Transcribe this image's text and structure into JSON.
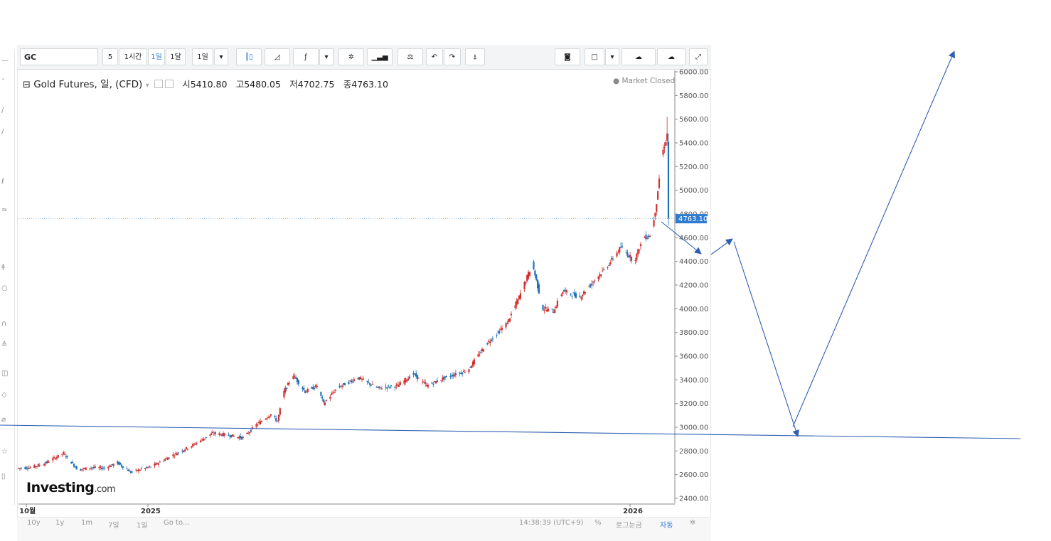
{
  "toolbar": {
    "symbol": "GC",
    "intervals": [
      "5",
      "1시간",
      "1일",
      "1달",
      "1일"
    ],
    "active_interval": "1일"
  },
  "legend": {
    "title": "Gold Futures, 일, (CFD)",
    "open_label": "시",
    "open": "5410.80",
    "high_label": "고",
    "high": "5480.05",
    "low_label": "저",
    "low": "4702.75",
    "close_label": "종",
    "close": "4763.10",
    "status": "● Market Closed"
  },
  "watermark": {
    "brand": "Investing",
    "suffix": ".com"
  },
  "bottom": {
    "ranges": [
      "10y",
      "1y",
      "1m",
      "7일",
      "1일",
      "Go to..."
    ],
    "time": "14:38:39 (UTC+9)",
    "percent": "%",
    "log": "로그눈금",
    "auto": "자동"
  },
  "chart_data": {
    "type": "candlestick",
    "title": "Gold Futures, 일, (CFD)",
    "yaxis": {
      "ticks": [
        2400,
        2600,
        2800,
        3000,
        3200,
        3400,
        3600,
        3800,
        4000,
        4200,
        4400,
        4600,
        4800,
        5000,
        5200,
        5400,
        5600,
        5800,
        6000
      ],
      "tick_labels": [
        "2400.00",
        "2600.00",
        "2800.00",
        "3000.00",
        "3200.00",
        "3400.00",
        "3600.00",
        "3800.00",
        "4000.00",
        "4200.00",
        "4400.00",
        "4600.00",
        "4800.00",
        "5000.00",
        "5200.00",
        "5400.00",
        "5600.00",
        "5800.00",
        "6000.00"
      ],
      "ylim": [
        2380,
        6040
      ]
    },
    "xaxis": {
      "tick_labels": [
        "10월",
        "2025",
        "2026"
      ],
      "tick_dates": [
        "2024-10-01",
        "2025-01-01",
        "2026-01-01"
      ],
      "range": [
        "2024-09-25",
        "2026-01-30"
      ]
    },
    "last_price_label": "4763.10",
    "last_price": 4763.1,
    "trend_path": [
      [
        "2024-09-25",
        2655
      ],
      [
        "2024-10-05",
        2660
      ],
      [
        "2024-10-15",
        2690
      ],
      [
        "2024-10-30",
        2780
      ],
      [
        "2024-11-10",
        2640
      ],
      [
        "2024-11-20",
        2660
      ],
      [
        "2024-11-30",
        2655
      ],
      [
        "2024-12-10",
        2700
      ],
      [
        "2024-12-20",
        2620
      ],
      [
        "2025-01-05",
        2670
      ],
      [
        "2025-01-20",
        2760
      ],
      [
        "2025-02-05",
        2850
      ],
      [
        "2025-02-20",
        2950
      ],
      [
        "2025-03-05",
        2930
      ],
      [
        "2025-03-15",
        2910
      ],
      [
        "2025-03-25",
        3020
      ],
      [
        "2025-04-05",
        3110
      ],
      [
        "2025-04-10",
        3050
      ],
      [
        "2025-04-15",
        3300
      ],
      [
        "2025-04-22",
        3440
      ],
      [
        "2025-05-01",
        3300
      ],
      [
        "2025-05-10",
        3350
      ],
      [
        "2025-05-15",
        3200
      ],
      [
        "2025-05-25",
        3330
      ],
      [
        "2025-06-10",
        3420
      ],
      [
        "2025-06-25",
        3330
      ],
      [
        "2025-07-10",
        3350
      ],
      [
        "2025-07-22",
        3450
      ],
      [
        "2025-08-01",
        3350
      ],
      [
        "2025-08-15",
        3420
      ],
      [
        "2025-09-01",
        3480
      ],
      [
        "2025-09-15",
        3700
      ],
      [
        "2025-10-01",
        3880
      ],
      [
        "2025-10-10",
        4100
      ],
      [
        "2025-10-20",
        4380
      ],
      [
        "2025-10-28",
        4000
      ],
      [
        "2025-11-05",
        3980
      ],
      [
        "2025-11-12",
        4150
      ],
      [
        "2025-11-25",
        4100
      ],
      [
        "2025-12-05",
        4230
      ],
      [
        "2025-12-15",
        4350
      ],
      [
        "2025-12-26",
        4520
      ],
      [
        "2026-01-05",
        4400
      ],
      [
        "2026-01-12",
        4600
      ],
      [
        "2026-01-18",
        4620
      ],
      [
        "2026-01-22",
        4900
      ],
      [
        "2026-01-26",
        5300
      ],
      [
        "2026-01-29",
        5420
      ],
      [
        "2026-01-30",
        4763
      ]
    ],
    "annotations": {
      "horizontal_support_level": 2980,
      "projection_arrows": "hand-drawn arrows: down to ~4500, up to ~4600, down to ~3000 support, then up beyond 6000"
    }
  }
}
